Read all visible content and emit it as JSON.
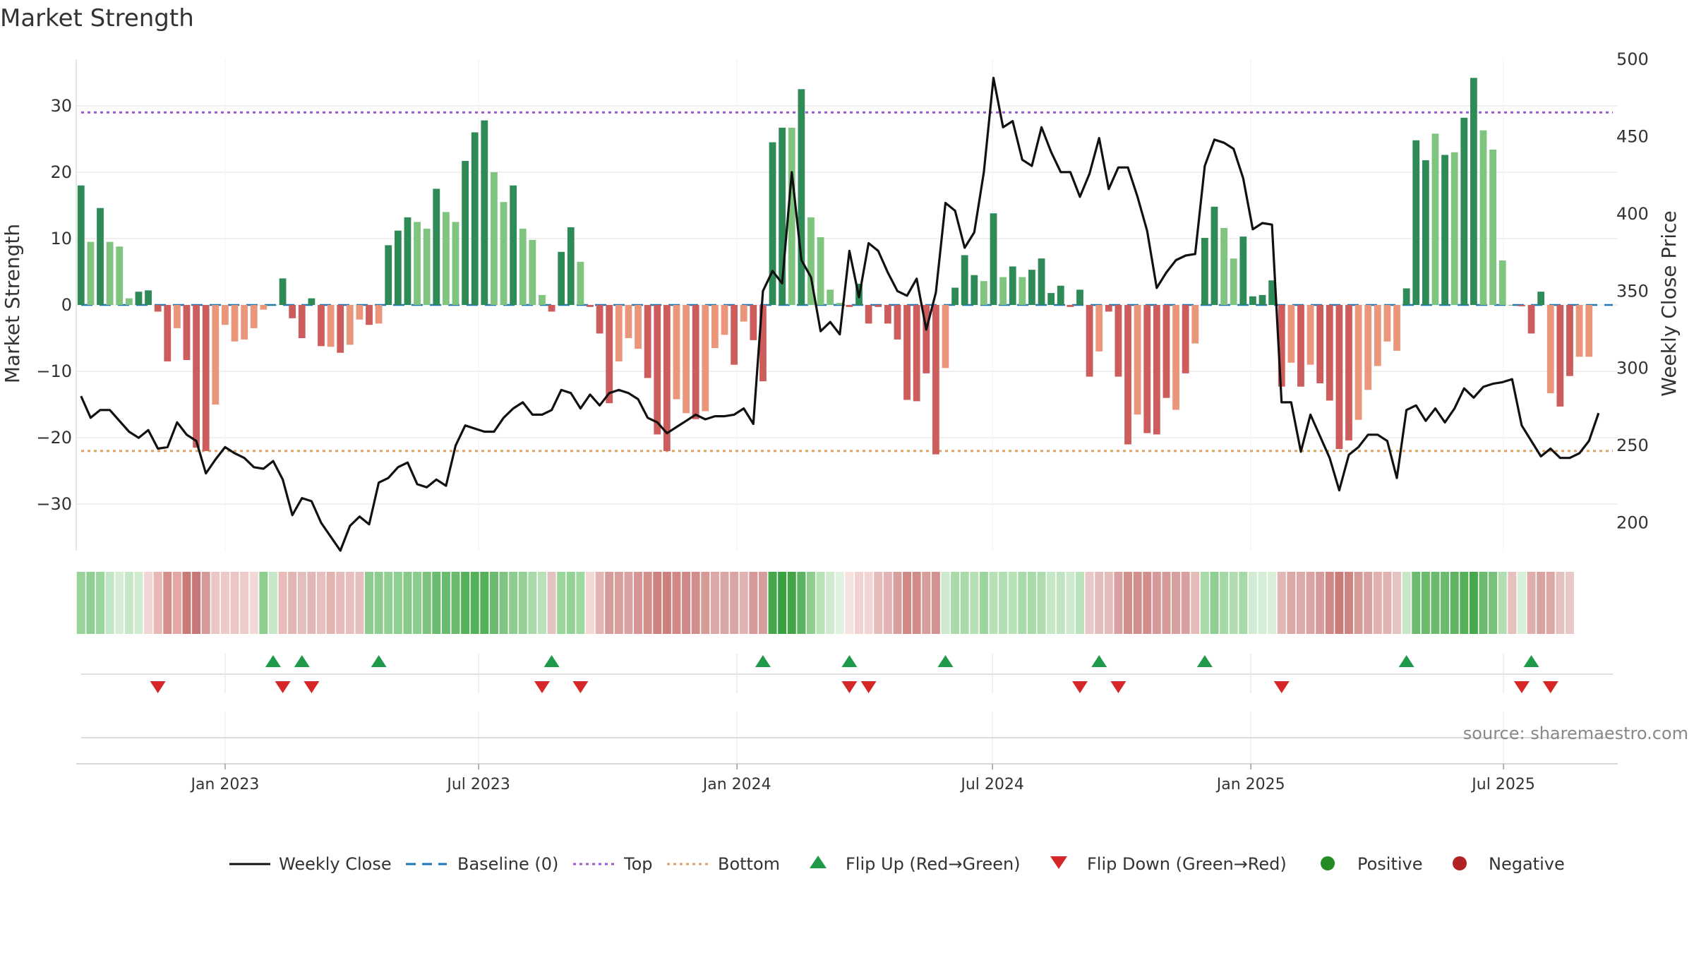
{
  "title": "Market Strength",
  "source": "source: sharemaestro.com",
  "colors": {
    "pos_dark": "#2e8b57",
    "pos_light": "#7fc47f",
    "neg_dark": "#cd5c5c",
    "neg_light": "#e9967a",
    "top": "#9b59d0",
    "bottom": "#e0a060",
    "baseline": "#1f77b4",
    "close": "#111111",
    "flip_up": "#1f9a4a",
    "flip_down": "#d62728",
    "positive": "#228b22",
    "negative": "#b22222"
  },
  "chart_data": {
    "type": "bar",
    "title": "Market Strength",
    "ylabel": "Market Strength",
    "y2label": "Weekly Close Price",
    "ylim": [
      -37,
      37
    ],
    "y2lim": [
      182,
      500
    ],
    "yticks": [
      -30,
      -20,
      -10,
      0,
      10,
      20,
      30
    ],
    "y2ticks": [
      200,
      250,
      300,
      350,
      400,
      450,
      500
    ],
    "x_range_weeks": [
      0,
      160.5
    ],
    "xtick_positions_weeks": [
      15.5,
      41.9,
      68.8,
      95.4,
      122.3,
      148.6
    ],
    "xtick_labels": [
      "Jan 2023",
      "Jul 2023",
      "Jan 2024",
      "Jul 2024",
      "Jan 2025",
      "Jul 2025"
    ],
    "top_level": 29,
    "bottom_level": -22,
    "strength": [
      18,
      9.5,
      14.6,
      9.5,
      8.8,
      1,
      2,
      2.2,
      -1,
      -8.5,
      -3.5,
      -8.3,
      -21.5,
      -22,
      -15,
      -3,
      -5.5,
      -5.2,
      -3.5,
      -0.7,
      0,
      4,
      -2,
      -5,
      1,
      -6.2,
      -6.3,
      -7.2,
      -6,
      -2.2,
      -3,
      -2.8,
      9,
      11.2,
      13.2,
      12.5,
      11.5,
      17.5,
      14,
      12.5,
      21.7,
      26,
      27.8,
      20,
      15.5,
      18,
      11.5,
      9.8,
      1.5,
      -1,
      8,
      11.7,
      6.5,
      -0.3,
      -4.3,
      -14.8,
      -8.5,
      -5,
      -6.6,
      -11,
      -19.5,
      -22,
      -14.2,
      -16.3,
      -17.2,
      -16,
      -6.5,
      -4.5,
      -9,
      -2.5,
      -5.3,
      -11.5,
      24.5,
      26.7,
      26.7,
      32.5,
      13.2,
      10.2,
      2.3,
      0.3,
      -0.3,
      3.2,
      -2.8,
      -0.3,
      -2.8,
      -5.2,
      -14.3,
      -14.5,
      -10.3,
      -22.5,
      -9.5,
      2.6,
      7.5,
      4.5,
      3.6,
      13.8,
      4.2,
      5.8,
      4.2,
      5.3,
      7,
      1.8,
      2.9,
      -0.3,
      2.3,
      -10.8,
      -7,
      -1,
      -10.8,
      -21,
      -16.5,
      -19.3,
      -19.5,
      -14,
      -15.8,
      -10.3,
      -5.8,
      10.1,
      14.8,
      11.6,
      7,
      10.3,
      1.3,
      1.5,
      3.7,
      -12.3,
      -8.7,
      -12.3,
      -9,
      -11.8,
      -14.4,
      -21.7,
      -20.4,
      -17.3,
      -12.8,
      -9.2,
      -5.5,
      -6.9,
      2.5,
      24.8,
      21.8,
      25.8,
      22.6,
      23,
      28.2,
      34.2,
      26.3,
      23.4,
      6.7,
      0,
      -0.2,
      -4.3,
      2,
      -13.3,
      -15.3,
      -10.7,
      -7.8,
      -7.8
    ],
    "strength_shade": [
      1,
      0,
      1,
      0,
      0,
      0,
      1,
      1,
      1,
      1,
      0,
      1,
      1,
      1,
      0,
      0,
      0,
      0,
      0,
      0,
      1,
      1,
      1,
      1,
      1,
      1,
      0,
      1,
      0,
      0,
      1,
      0,
      1,
      1,
      1,
      0,
      0,
      1,
      0,
      0,
      1,
      1,
      1,
      0,
      0,
      1,
      0,
      0,
      0,
      1,
      1,
      1,
      0,
      1,
      1,
      1,
      0,
      0,
      0,
      1,
      1,
      1,
      0,
      0,
      1,
      0,
      0,
      0,
      1,
      0,
      1,
      1,
      1,
      1,
      0,
      1,
      0,
      0,
      0,
      0,
      1,
      1,
      1,
      1,
      1,
      1,
      1,
      1,
      1,
      1,
      0,
      1,
      1,
      1,
      0,
      1,
      0,
      1,
      0,
      1,
      1,
      1,
      1,
      1,
      1,
      1,
      0,
      1,
      1,
      1,
      0,
      1,
      1,
      1,
      0,
      1,
      0,
      1,
      1,
      0,
      0,
      1,
      1,
      1,
      1,
      1,
      0,
      1,
      0,
      1,
      1,
      1,
      1,
      0,
      0,
      0,
      0,
      0,
      1,
      1,
      1,
      0,
      1,
      0,
      1,
      1,
      0,
      0,
      0,
      1,
      1,
      1,
      1,
      0,
      1,
      1,
      0,
      0
    ],
    "weekly_close": [
      282,
      268,
      273,
      273,
      266,
      259,
      255,
      260,
      248,
      249,
      265,
      257,
      253,
      232,
      241,
      249,
      245,
      242,
      236,
      235,
      240,
      228,
      205,
      216,
      214,
      200,
      191,
      182,
      198,
      204,
      199,
      226,
      229,
      236,
      239,
      225,
      223,
      228,
      224,
      250,
      263,
      261,
      259,
      259,
      268,
      274,
      278,
      270,
      270,
      273,
      286,
      284,
      274,
      283,
      276,
      284,
      286,
      284,
      280,
      268,
      265,
      258,
      262,
      266,
      270,
      267,
      269,
      269,
      270,
      274,
      264,
      350,
      363,
      355,
      427,
      370,
      359,
      324,
      330,
      322,
      376,
      346,
      381,
      376,
      362,
      350,
      347,
      358,
      325,
      349,
      407,
      402,
      378,
      388,
      427,
      488,
      456,
      460,
      435,
      431,
      456,
      440,
      427,
      427,
      411,
      426,
      449,
      416,
      430,
      430,
      411,
      389,
      352,
      362,
      370,
      373,
      374,
      431,
      448,
      446,
      442,
      423,
      390,
      394,
      393,
      278,
      278,
      246,
      270,
      256,
      242,
      221,
      244,
      249,
      257,
      257,
      253,
      229,
      273,
      276,
      266,
      274,
      265,
      274,
      287,
      281,
      288,
      290,
      291,
      293,
      263,
      253,
      243,
      248,
      242,
      242,
      245,
      253,
      271
    ],
    "palette_colors": [
      "#97d498",
      "#8fcf93",
      "#9bd69c",
      "#c2e6c5",
      "#d6eed6",
      "#c5e7c8",
      "#d0ebd0",
      "#f0d6d4",
      "#e8b9b4",
      "#d48f8d",
      "#e1a8a5",
      "#c97b78",
      "#c67777",
      "#d7999a",
      "#eac7c5",
      "#edcac8",
      "#ecc6c4",
      "#edcbc9",
      "#f3d8d7",
      "#8dce8f",
      "#c7e8c8",
      "#e8bcba",
      "#e2b6b3",
      "#e3bebd",
      "#e1b7b7",
      "#e6bfbe",
      "#e2b3b1",
      "#e4baba",
      "#e6c0bf",
      "#e6bebd",
      "#8ccd8f",
      "#8ccd8f",
      "#91d092",
      "#8ed091",
      "#86c989",
      "#8bcd8f",
      "#7bc27d",
      "#6abb6d",
      "#6abb6d",
      "#6abb6d",
      "#55b05a",
      "#55b05a",
      "#55b05a",
      "#6abb6d",
      "#7fc480",
      "#8dce90",
      "#94d094",
      "#a8dba9",
      "#b8e1b7",
      "#e3c3c2",
      "#9bd69d",
      "#94d194",
      "#a0d8a2",
      "#f2d9d8",
      "#e2b5b3",
      "#d69b98",
      "#d89e9c",
      "#d9a2a1",
      "#d49593",
      "#d28e8b",
      "#ce8280",
      "#cc7f7c",
      "#d08987",
      "#d08987",
      "#d28e8b",
      "#d69a97",
      "#dca7a6",
      "#dba6a5",
      "#daa5a4",
      "#e0b3b2",
      "#d69b98",
      "#d79e9c",
      "#46a64d",
      "#3aa140",
      "#44a44a",
      "#5cb362",
      "#8dce8f",
      "#b8e2b8",
      "#cfeacf",
      "#e0f2df",
      "#f5e2e1",
      "#f0d2d1",
      "#f2d6d5",
      "#e5bcbb",
      "#e1b3b2",
      "#d89e9b",
      "#cf8885",
      "#d08a87",
      "#d79d9a",
      "#d29290",
      "#cde8cd",
      "#a8dba9",
      "#a8dba9",
      "#b5e0b4",
      "#9ad69c",
      "#b7e2b6",
      "#b0dfb1",
      "#b5e1b4",
      "#a8dbab",
      "#a9dba9",
      "#afdcaf",
      "#c4e7c5",
      "#c0e4c1",
      "#cde9cd",
      "#bbe3bb",
      "#e9c9c7",
      "#e3bdbb",
      "#e3bdbb",
      "#d8a09e",
      "#d18f8c",
      "#d28e8d",
      "#d28e8d",
      "#d69b99",
      "#d69b99",
      "#d6a09d",
      "#d8a09e",
      "#e3bcba",
      "#a8dba9",
      "#90cf92",
      "#a4d9a5",
      "#b0ddb0",
      "#a6d9a8",
      "#d2ecd3",
      "#d5eed7",
      "#d8efd7",
      "#e1b7b5",
      "#dba8a6",
      "#dcaaa8",
      "#d9a4a2",
      "#d69c99",
      "#cf8885",
      "#c97b78",
      "#ce8480",
      "#d69a98",
      "#d9a2a1",
      "#e0b1ae",
      "#e1b2b1",
      "#e6c3c2",
      "#c8e6c8",
      "#6abb6d",
      "#6abb6d",
      "#6abb6d",
      "#6abb6d",
      "#5fb464",
      "#55b05a",
      "#48a74e",
      "#6abb6d",
      "#77c17a",
      "#b2dfb1",
      "#e6c0bf",
      "#d8efd8",
      "#e0afad",
      "#d9a3a1",
      "#dca8a7",
      "#e4c0be",
      "#e9c9c7"
    ],
    "flip_up_weeks": [
      20.5,
      23.5,
      31.5,
      49.5,
      71.5,
      80.5,
      90.5,
      106.5,
      117.5,
      138.5,
      151.5
    ],
    "flip_down_weeks": [
      8.5,
      21.5,
      24.5,
      48.5,
      52.5,
      80.5,
      82.5,
      104.5,
      108.5,
      125.5,
      150.5,
      153.5
    ],
    "legend": {
      "close": "Weekly Close",
      "baseline": "Baseline (0)",
      "top": "Top",
      "bottom": "Bottom",
      "flip_up": "Flip Up (Red→Green)",
      "flip_down": "Flip Down (Green→Red)",
      "positive": "Positive",
      "negative": "Negative"
    }
  }
}
